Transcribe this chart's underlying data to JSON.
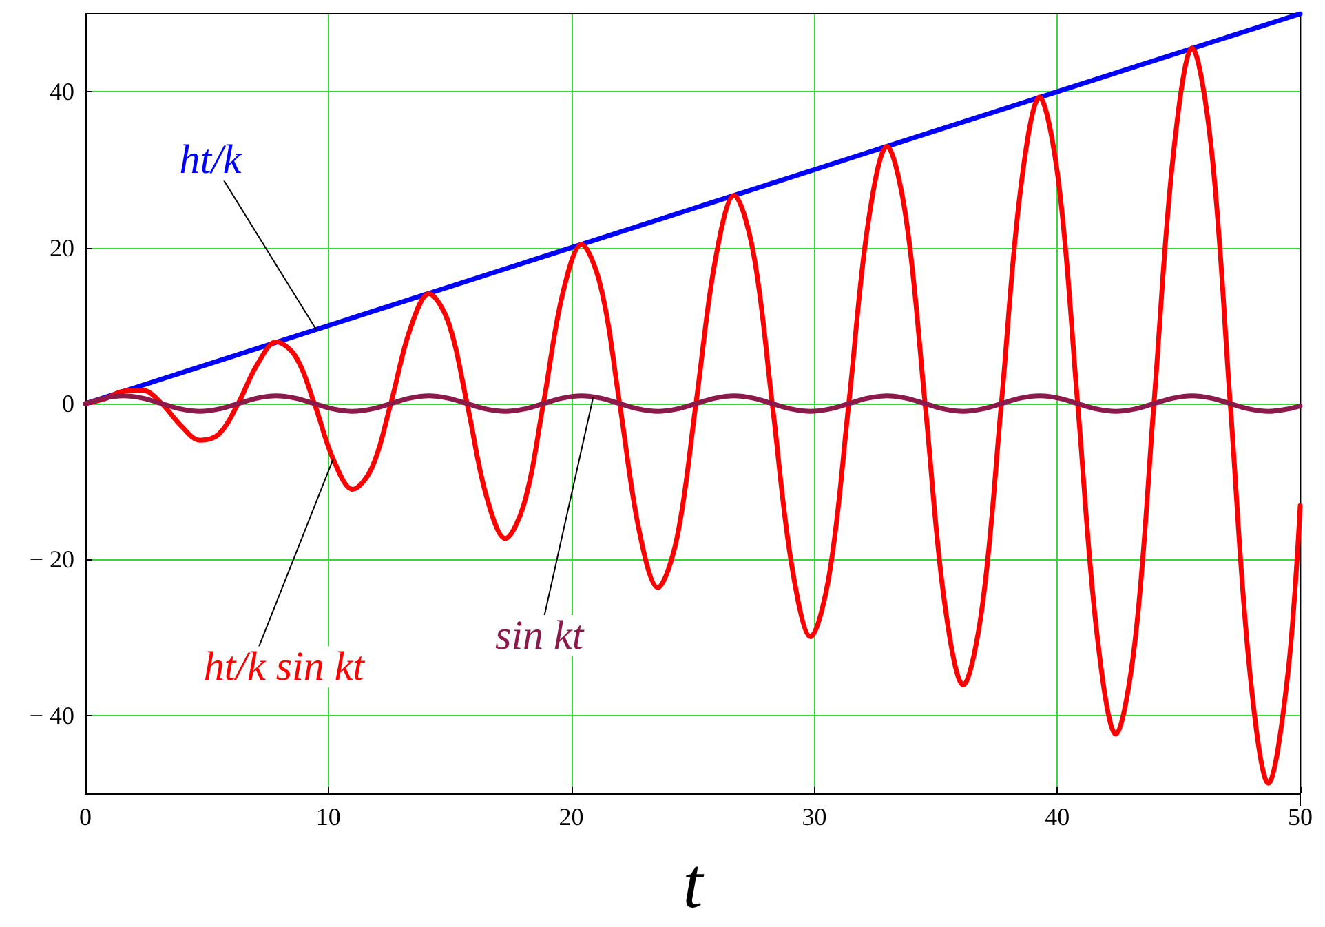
{
  "chart_data": {
    "type": "line",
    "xlabel": "t",
    "xlim": [
      0,
      50
    ],
    "xticks": [
      0,
      10,
      20,
      30,
      40,
      50
    ],
    "ylim": [
      -50,
      50
    ],
    "yticks": [
      {
        "value": -40,
        "label": "− 40"
      },
      {
        "value": -20,
        "label": "− 20"
      },
      0,
      20,
      40
    ],
    "grid": true,
    "legend": false,
    "marker": "none",
    "line_style": "solid",
    "series": [
      {
        "name": "ht/k",
        "color": "#0000ff",
        "x": [
          0,
          50
        ],
        "values": [
          0,
          50
        ]
      },
      {
        "name": "ht/k sin kt",
        "color": "#ff0000",
        "x": [
          0,
          0.785,
          1.571,
          2.356,
          3.142,
          3.927,
          4.712,
          5.498,
          6.283,
          7.069,
          7.854,
          8.639,
          9.425,
          10.21,
          11.0,
          11.78,
          12.57,
          13.35,
          14.14,
          14.92,
          15.71,
          16.49,
          17.28,
          18.06,
          18.85,
          19.63,
          20.42,
          21.21,
          21.99,
          22.78,
          23.56,
          24.35,
          25.13,
          25.92,
          26.7,
          27.49,
          28.27,
          29.06,
          29.85,
          30.63,
          31.42,
          32.2,
          32.99,
          33.77,
          34.56,
          35.34,
          36.13,
          36.91,
          37.7,
          38.48,
          39.27,
          40.06,
          40.84,
          41.63,
          42.41,
          43.2,
          43.98,
          44.77,
          45.55,
          46.34,
          47.12,
          47.91,
          48.69,
          49.48,
          50
        ],
        "values": [
          0,
          0.6,
          1.6,
          1.7,
          0,
          -2.8,
          -4.7,
          -3.9,
          0,
          5.0,
          7.9,
          6.1,
          0,
          -7.2,
          -11.0,
          -8.3,
          0,
          9.4,
          14.1,
          10.6,
          0,
          -11.7,
          -17.3,
          -12.8,
          0,
          13.9,
          20.4,
          15.0,
          0,
          -16.1,
          -23.6,
          -17.2,
          0,
          18.3,
          26.7,
          19.4,
          0,
          -20.5,
          -29.9,
          -21.7,
          0,
          22.8,
          33.0,
          23.9,
          0,
          -25.0,
          -36.1,
          -26.1,
          0,
          27.2,
          39.3,
          28.3,
          0,
          -29.4,
          -42.4,
          -30.5,
          0,
          31.7,
          45.6,
          32.8,
          0,
          -33.9,
          -48.7,
          -35.0,
          -13.1
        ]
      },
      {
        "name": "sin kt",
        "color": "#8b1a4a",
        "x": [
          0,
          0.785,
          1.571,
          2.356,
          3.142,
          3.927,
          4.712,
          5.498,
          6.283,
          7.069,
          7.854,
          8.639,
          9.425,
          10.21,
          11.0,
          11.78,
          12.57,
          13.35,
          14.14,
          14.92,
          15.71,
          16.49,
          17.28,
          18.06,
          18.85,
          19.63,
          20.42,
          21.21,
          21.99,
          22.78,
          23.56,
          24.35,
          25.13,
          25.92,
          26.7,
          27.49,
          28.27,
          29.06,
          29.85,
          30.63,
          31.42,
          32.2,
          32.99,
          33.77,
          34.56,
          35.34,
          36.13,
          36.91,
          37.7,
          38.48,
          39.27,
          40.06,
          40.84,
          41.63,
          42.41,
          43.2,
          43.98,
          44.77,
          45.55,
          46.34,
          47.12,
          47.91,
          48.69,
          49.48,
          50
        ],
        "values": [
          0,
          0.7,
          1,
          0.7,
          0,
          -0.7,
          -1,
          -0.7,
          0,
          0.7,
          1,
          0.7,
          0,
          -0.7,
          -1,
          -0.7,
          0,
          0.7,
          1,
          0.7,
          0,
          -0.7,
          -1,
          -0.7,
          0,
          0.7,
          1,
          0.7,
          0,
          -0.7,
          -1,
          -0.7,
          0,
          0.7,
          1,
          0.7,
          0,
          -0.7,
          -1,
          -0.7,
          0,
          0.7,
          1,
          0.7,
          0,
          -0.7,
          -1,
          -0.7,
          0,
          0.7,
          1,
          0.7,
          0,
          -0.7,
          -1,
          -0.7,
          0,
          0.7,
          1,
          0.7,
          0,
          -0.7,
          -1,
          -0.7,
          -0.3
        ]
      }
    ]
  }
}
